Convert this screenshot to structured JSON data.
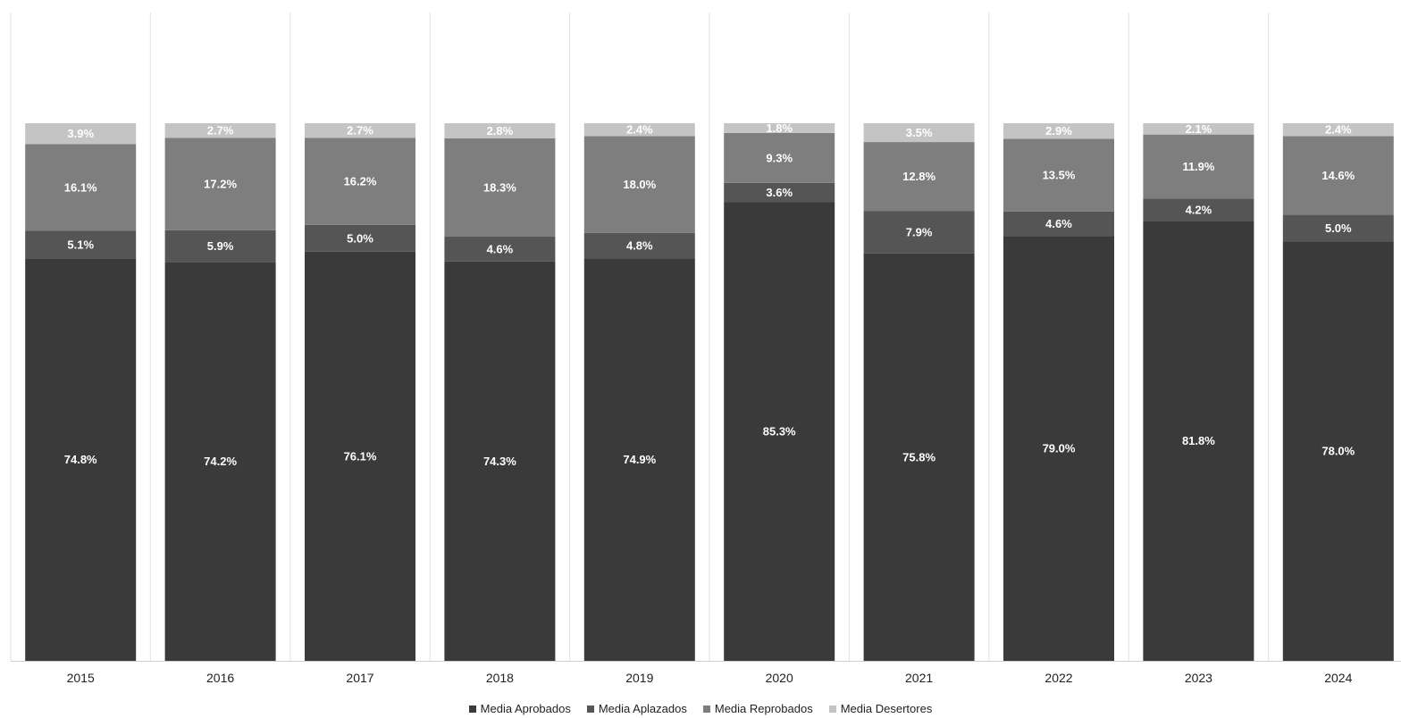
{
  "chart_data": {
    "type": "bar",
    "stacked": true,
    "percent_stacked": true,
    "categories": [
      "2015",
      "2016",
      "2017",
      "2018",
      "2019",
      "2020",
      "2021",
      "2022",
      "2023",
      "2024"
    ],
    "series": [
      {
        "name": "Media Aprobados",
        "color": "#3a3a3a",
        "values": [
          74.8,
          74.2,
          76.1,
          74.3,
          74.9,
          85.3,
          75.8,
          79.0,
          81.8,
          78.0
        ],
        "labels": [
          "74.8%",
          "74.2%",
          "76.1%",
          "74.3%",
          "74.9%",
          "85.3%",
          "75.8%",
          "79.0%",
          "81.8%",
          "78.0%"
        ]
      },
      {
        "name": "Media Aplazados",
        "color": "#555555",
        "values": [
          5.1,
          5.9,
          5.0,
          4.6,
          4.8,
          3.6,
          7.9,
          4.6,
          4.2,
          5.0
        ],
        "labels": [
          "5.1%",
          "5.9%",
          "5.0%",
          "4.6%",
          "4.8%",
          "3.6%",
          "7.9%",
          "4.6%",
          "4.2%",
          "5.0%"
        ]
      },
      {
        "name": "Media Reprobados",
        "color": "#7e7e7e",
        "values": [
          16.1,
          17.2,
          16.2,
          18.3,
          18.0,
          9.3,
          12.8,
          13.5,
          11.9,
          14.6
        ],
        "labels": [
          "16.1%",
          "17.2%",
          "16.2%",
          "18.3%",
          "18.0%",
          "9.3%",
          "12.8%",
          "13.5%",
          "11.9%",
          "14.6%"
        ]
      },
      {
        "name": "Media Desertores",
        "color": "#c4c4c4",
        "values": [
          3.9,
          2.7,
          2.7,
          2.8,
          2.4,
          1.8,
          3.5,
          2.9,
          2.1,
          2.4
        ],
        "labels": [
          "3.9%",
          "2.7%",
          "2.7%",
          "2.8%",
          "2.4%",
          "1.8%",
          "3.5%",
          "2.9%",
          "2.1%",
          "2.4%"
        ]
      }
    ],
    "title": "",
    "xlabel": "",
    "ylabel": "",
    "ylim": [
      0,
      100
    ],
    "grid": "vertical separators",
    "legend_position": "bottom"
  }
}
